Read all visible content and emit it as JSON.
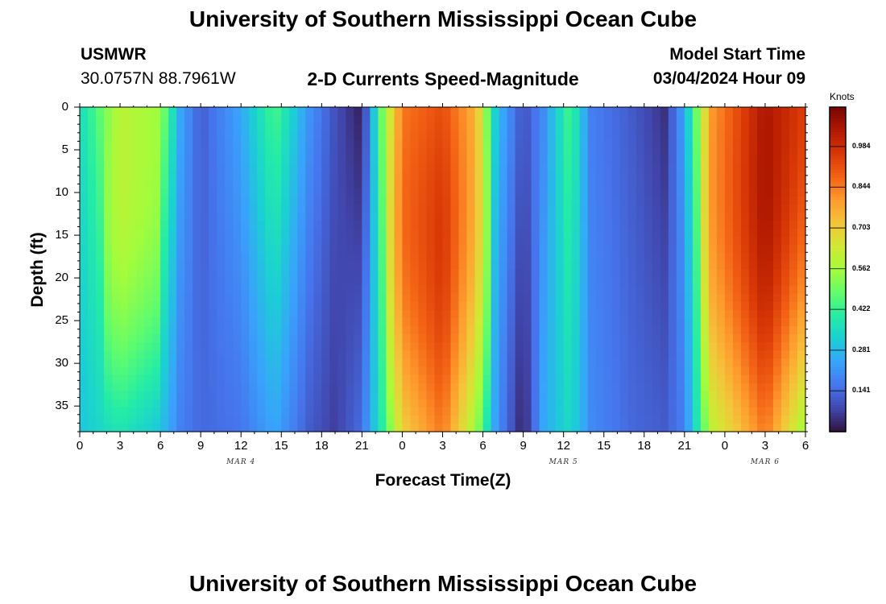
{
  "page_title": "University of Southern Mississippi Ocean Cube",
  "station": {
    "id": "USMWR",
    "coords": "30.0757N  88.7961W"
  },
  "plot_title": "2-D Currents Speed-Magnitude",
  "model": {
    "label": "Model Start Time",
    "time": "03/04/2024 Hour 09"
  },
  "footer_title": "University of Southern Mississippi Ocean Cube",
  "chart_data": {
    "type": "heatmap",
    "xlabel": "Forecast Time(Z)",
    "ylabel": "Depth (ft)",
    "colorbar_label": "Knots",
    "x_tick_labels": [
      "0",
      "3",
      "6",
      "9",
      "12",
      "15",
      "18",
      "21",
      "0",
      "3",
      "6",
      "9",
      "12",
      "15",
      "18",
      "21",
      "0",
      "3",
      "6"
    ],
    "x_range_hours": [
      0,
      54
    ],
    "date_labels": [
      {
        "text": "MAR 4",
        "hour": 12
      },
      {
        "text": "MAR 5",
        "hour": 36
      },
      {
        "text": "MAR 6",
        "hour": 51
      }
    ],
    "y_ticks": [
      0,
      5,
      10,
      15,
      20,
      25,
      30,
      35
    ],
    "y_range_ft": [
      0,
      38
    ],
    "y_inverted": true,
    "colorbar_ticks": [
      "0.984",
      "0.844",
      "0.703",
      "0.562",
      "0.422",
      "0.281",
      "0.141"
    ],
    "colorbar_range": [
      0,
      1.12
    ],
    "colormap": [
      "#30123b",
      "#4145ab",
      "#4675ed",
      "#39a2fc",
      "#1bcfd4",
      "#24eca6",
      "#61fc6c",
      "#a4fc3b",
      "#d1e834",
      "#f3c63a",
      "#fe9b2d",
      "#f36315",
      "#d93806",
      "#b11901",
      "#7a0403"
    ],
    "speed_profile_by_hour": [
      {
        "hour": 0,
        "top": 0.35,
        "bottom": 0.3
      },
      {
        "hour": 3,
        "top": 0.6,
        "bottom": 0.38
      },
      {
        "hour": 6,
        "top": 0.55,
        "bottom": 0.3
      },
      {
        "hour": 7.5,
        "top": 0.25,
        "bottom": 0.18
      },
      {
        "hour": 9,
        "top": 0.12,
        "bottom": 0.14
      },
      {
        "hour": 12,
        "top": 0.25,
        "bottom": 0.16
      },
      {
        "hour": 14.5,
        "top": 0.45,
        "bottom": 0.25
      },
      {
        "hour": 17,
        "top": 0.22,
        "bottom": 0.12
      },
      {
        "hour": 19,
        "top": 0.1,
        "bottom": 0.07
      },
      {
        "hour": 21,
        "top": 0.02,
        "bottom": 0.15
      },
      {
        "hour": 22.5,
        "top": 0.5,
        "bottom": 0.4
      },
      {
        "hour": 24,
        "top": 0.85,
        "bottom": 0.7
      },
      {
        "hour": 27,
        "top": 0.92,
        "bottom": 0.85
      },
      {
        "hour": 29.5,
        "top": 0.75,
        "bottom": 0.55
      },
      {
        "hour": 31,
        "top": 0.3,
        "bottom": 0.22
      },
      {
        "hour": 33,
        "top": 0.1,
        "bottom": 0.02
      },
      {
        "hour": 34.5,
        "top": 0.2,
        "bottom": 0.25
      },
      {
        "hour": 36.5,
        "top": 0.45,
        "bottom": 0.35
      },
      {
        "hour": 38,
        "top": 0.18,
        "bottom": 0.2
      },
      {
        "hour": 41,
        "top": 0.12,
        "bottom": 0.14
      },
      {
        "hour": 43.5,
        "top": 0.05,
        "bottom": 0.12
      },
      {
        "hour": 45,
        "top": 0.25,
        "bottom": 0.18
      },
      {
        "hour": 47,
        "top": 0.8,
        "bottom": 0.6
      },
      {
        "hour": 51,
        "top": 1.05,
        "bottom": 0.85
      },
      {
        "hour": 54,
        "top": 0.95,
        "bottom": 0.55
      }
    ]
  }
}
